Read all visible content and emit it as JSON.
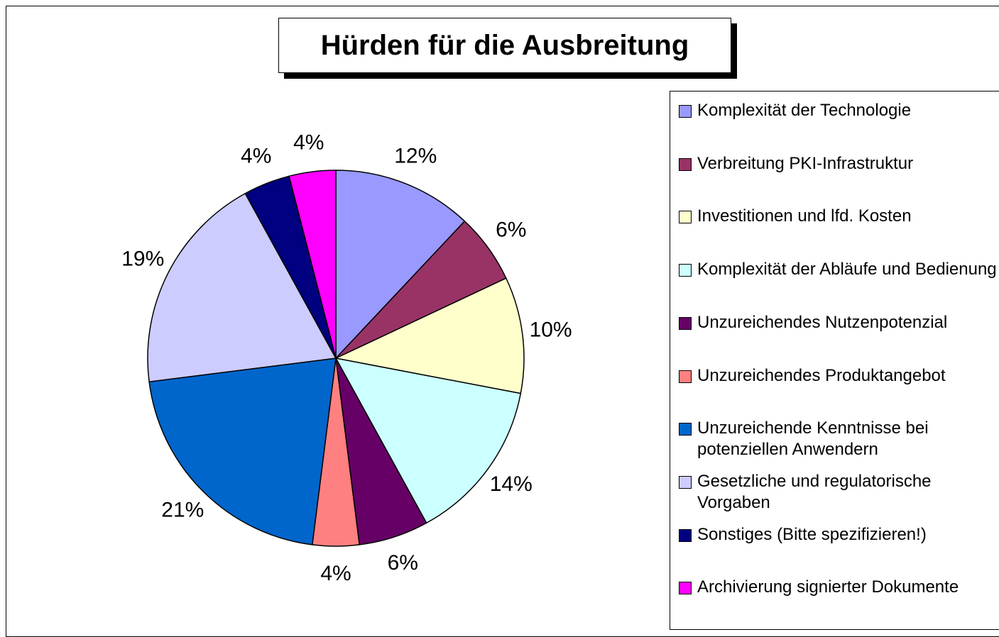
{
  "chart_data": {
    "type": "pie",
    "title": "Hürden für die Ausbreitung",
    "categories": [
      "Komplexität der Technologie",
      "Verbreitung PKI-Infrastruktur",
      "Investitionen und lfd. Kosten",
      "Komplexität der Abläufe und Bedienung",
      "Unzureichendes Nutzenpotenzial",
      "Unzureichendes Produktangebot",
      "Unzureichende Kenntnisse bei potenziellen Anwendern",
      "Gesetzliche und regulatorische Vorgaben",
      "Sonstiges (Bitte spezifizieren!)",
      "Archivierung signierter Dokumente"
    ],
    "values": [
      12,
      6,
      10,
      14,
      6,
      4,
      21,
      19,
      4,
      4
    ],
    "value_labels": [
      "12%",
      "6%",
      "10%",
      "14%",
      "6%",
      "4%",
      "21%",
      "19%",
      "4%",
      "4%"
    ],
    "colors": [
      "#9999ff",
      "#993366",
      "#ffffcc",
      "#ccffff",
      "#660066",
      "#ff8080",
      "#0066cc",
      "#ccccff",
      "#000080",
      "#ff00ff"
    ],
    "legend": "right"
  }
}
